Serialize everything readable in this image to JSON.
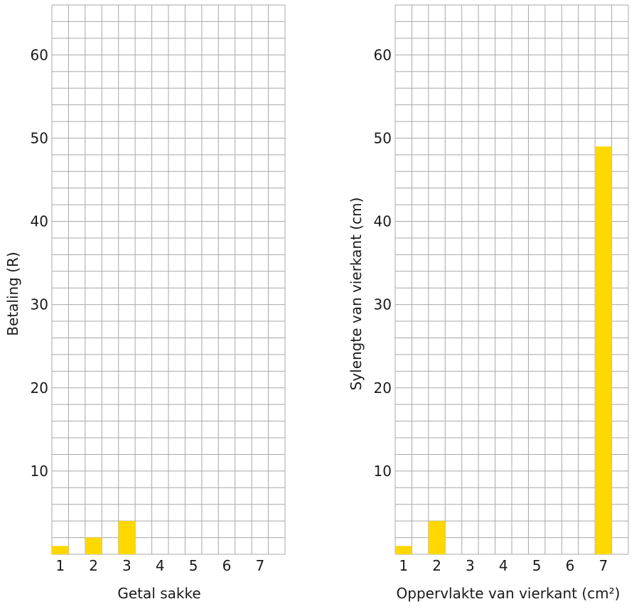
{
  "colors": {
    "bar": "#ffd800",
    "grid": "#a8a8a8",
    "text": "#1a1a1a"
  },
  "chart_data": [
    {
      "type": "bar",
      "title": "",
      "xlabel": "Getal sakke",
      "ylabel": "Betaling (R)",
      "categories": [
        "1",
        "2",
        "3",
        "4",
        "5",
        "6",
        "7"
      ],
      "values": [
        1,
        2,
        4,
        null,
        null,
        null,
        null
      ],
      "yticks": [
        "10",
        "20",
        "30",
        "40",
        "50",
        "60"
      ],
      "ylim": [
        0,
        66
      ],
      "grid": true,
      "legend": "none"
    },
    {
      "type": "bar",
      "title": "",
      "xlabel": "Oppervlakte van vierkant (cm²)",
      "ylabel": "Sylengte van vierkant (cm)",
      "categories": [
        "1",
        "2",
        "3",
        "4",
        "5",
        "6",
        "7"
      ],
      "values": [
        1,
        4,
        null,
        null,
        null,
        null,
        49
      ],
      "yticks": [
        "10",
        "20",
        "30",
        "40",
        "50",
        "60"
      ],
      "ylim": [
        0,
        66
      ],
      "grid": true,
      "legend": "none"
    }
  ]
}
